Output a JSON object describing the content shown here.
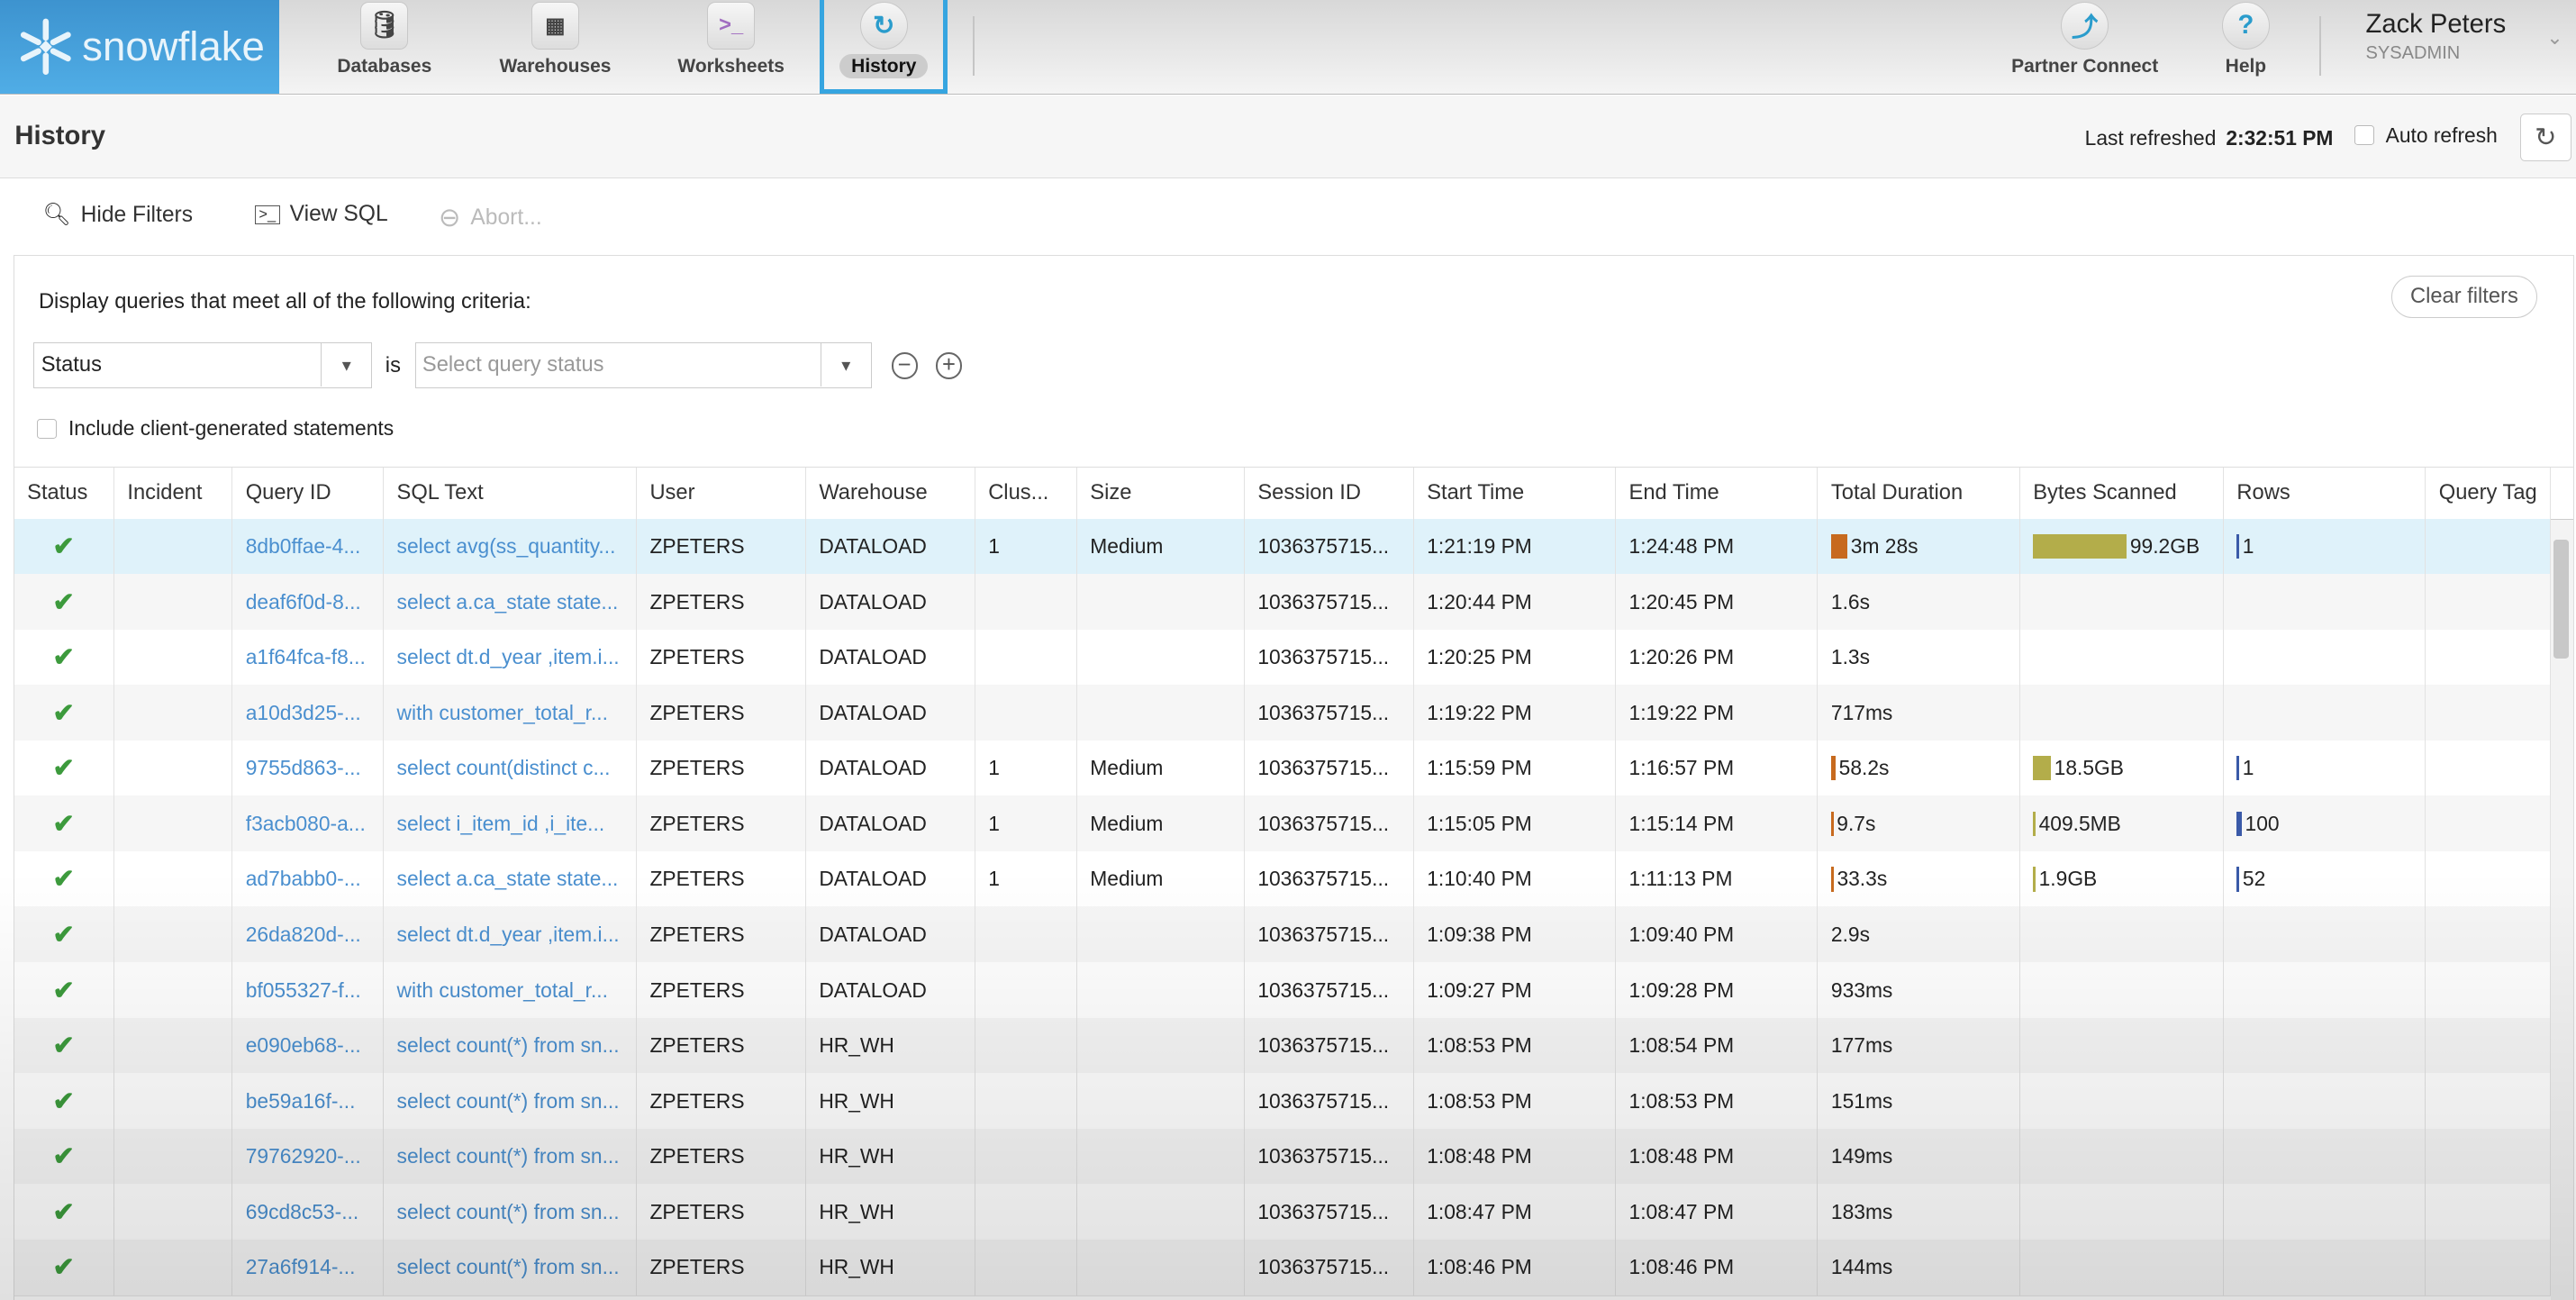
{
  "brand": "snowflake",
  "nav": [
    {
      "label": "Databases",
      "icon": "database-icon"
    },
    {
      "label": "Warehouses",
      "icon": "warehouse-icon"
    },
    {
      "label": "Worksheets",
      "icon": "terminal-icon"
    },
    {
      "label": "History",
      "icon": "history-icon",
      "active": true
    }
  ],
  "right_nav": [
    {
      "label": "Partner Connect",
      "icon": "partner-connect-icon"
    },
    {
      "label": "Help",
      "icon": "help-icon"
    }
  ],
  "user": {
    "name": "Zack Peters",
    "role": "SYSADMIN"
  },
  "page": {
    "title": "History",
    "last_refreshed_label": "Last refreshed",
    "last_refreshed": "2:32:51 PM",
    "auto_refresh": "Auto refresh"
  },
  "toolbar": {
    "hide_filters": "Hide Filters",
    "view_sql": "View SQL",
    "abort": "Abort..."
  },
  "filters": {
    "hint": "Display queries that meet all of the following criteria:",
    "clear": "Clear filters",
    "field": "Status",
    "op": "is",
    "value_placeholder": "Select query status",
    "include_client": "Include client-generated statements"
  },
  "columns": [
    "Status",
    "Incident",
    "Query ID",
    "SQL Text",
    "User",
    "Warehouse",
    "Clus...",
    "Size",
    "Session ID",
    "Start Time",
    "End Time",
    "Total Duration",
    "Bytes Scanned",
    "Rows",
    "Query Tag"
  ],
  "colors": {
    "brand": "#3d93cf",
    "link": "#4a8fcf",
    "success": "#3c9a3c",
    "selected_row": "#dff2fa",
    "duration_bar": "#c76a1e",
    "bytes_bar": "#b3ad4a",
    "rows_bar": "#3a5aa8"
  },
  "rows": [
    {
      "id": "8db0ffae-4...",
      "sql": "select avg(ss_quantity...",
      "user": "ZPETERS",
      "wh": "DATALOAD",
      "clus": "1",
      "size": "Medium",
      "session": "1036375715...",
      "start": "1:21:19 PM",
      "end": "1:24:48 PM",
      "dur": "3m 28s",
      "bytes": "99.2GB",
      "rows": "1",
      "dur_frac": 1,
      "bytes_frac": 1,
      "rows_frac": 0,
      "selected": true
    },
    {
      "id": "deaf6f0d-8...",
      "sql": "select a.ca_state state...",
      "user": "ZPETERS",
      "wh": "DATALOAD",
      "clus": "",
      "size": "",
      "session": "1036375715...",
      "start": "1:20:44 PM",
      "end": "1:20:45 PM",
      "dur": "1.6s",
      "bytes": "",
      "rows": ""
    },
    {
      "id": "a1f64fca-f8...",
      "sql": "select dt.d_year ,item.i...",
      "user": "ZPETERS",
      "wh": "DATALOAD",
      "clus": "",
      "size": "",
      "session": "1036375715...",
      "start": "1:20:25 PM",
      "end": "1:20:26 PM",
      "dur": "1.3s",
      "bytes": "",
      "rows": ""
    },
    {
      "id": "a10d3d25-...",
      "sql": "with customer_total_r...",
      "user": "ZPETERS",
      "wh": "DATALOAD",
      "clus": "",
      "size": "",
      "session": "1036375715...",
      "start": "1:19:22 PM",
      "end": "1:19:22 PM",
      "dur": "717ms",
      "bytes": "",
      "rows": ""
    },
    {
      "id": "9755d863-...",
      "sql": "select count(distinct c...",
      "user": "ZPETERS",
      "wh": "DATALOAD",
      "clus": "1",
      "size": "Medium",
      "session": "1036375715...",
      "start": "1:15:59 PM",
      "end": "1:16:57 PM",
      "dur": "58.2s",
      "bytes": "18.5GB",
      "rows": "1",
      "dur_frac": 0.28,
      "bytes_frac": 0.19,
      "rows_frac": 0
    },
    {
      "id": "f3acb080-a...",
      "sql": "select i_item_id ,i_ite...",
      "user": "ZPETERS",
      "wh": "DATALOAD",
      "clus": "1",
      "size": "Medium",
      "session": "1036375715...",
      "start": "1:15:05 PM",
      "end": "1:15:14 PM",
      "dur": "9.7s",
      "bytes": "409.5MB",
      "rows": "100",
      "dur_frac": 0,
      "bytes_frac": 0,
      "rows_frac": 1
    },
    {
      "id": "ad7babb0-...",
      "sql": "select a.ca_state state...",
      "user": "ZPETERS",
      "wh": "DATALOAD",
      "clus": "1",
      "size": "Medium",
      "session": "1036375715...",
      "start": "1:10:40 PM",
      "end": "1:11:13 PM",
      "dur": "33.3s",
      "bytes": "1.9GB",
      "rows": "52",
      "dur_frac": 0.16,
      "bytes_frac": 0.02,
      "rows_frac": 0.52
    },
    {
      "id": "26da820d-...",
      "sql": "select dt.d_year ,item.i...",
      "user": "ZPETERS",
      "wh": "DATALOAD",
      "clus": "",
      "size": "",
      "session": "1036375715...",
      "start": "1:09:38 PM",
      "end": "1:09:40 PM",
      "dur": "2.9s",
      "bytes": "",
      "rows": ""
    },
    {
      "id": "bf055327-f...",
      "sql": "with customer_total_r...",
      "user": "ZPETERS",
      "wh": "DATALOAD",
      "clus": "",
      "size": "",
      "session": "1036375715...",
      "start": "1:09:27 PM",
      "end": "1:09:28 PM",
      "dur": "933ms",
      "bytes": "",
      "rows": ""
    },
    {
      "id": "e090eb68-...",
      "sql": "select count(*) from sn...",
      "user": "ZPETERS",
      "wh": "HR_WH",
      "clus": "",
      "size": "",
      "session": "1036375715...",
      "start": "1:08:53 PM",
      "end": "1:08:54 PM",
      "dur": "177ms",
      "bytes": "",
      "rows": ""
    },
    {
      "id": "be59a16f-...",
      "sql": "select count(*) from sn...",
      "user": "ZPETERS",
      "wh": "HR_WH",
      "clus": "",
      "size": "",
      "session": "1036375715...",
      "start": "1:08:53 PM",
      "end": "1:08:53 PM",
      "dur": "151ms",
      "bytes": "",
      "rows": ""
    },
    {
      "id": "79762920-...",
      "sql": "select count(*) from sn...",
      "user": "ZPETERS",
      "wh": "HR_WH",
      "clus": "",
      "size": "",
      "session": "1036375715...",
      "start": "1:08:48 PM",
      "end": "1:08:48 PM",
      "dur": "149ms",
      "bytes": "",
      "rows": ""
    },
    {
      "id": "69cd8c53-...",
      "sql": "select count(*) from sn...",
      "user": "ZPETERS",
      "wh": "HR_WH",
      "clus": "",
      "size": "",
      "session": "1036375715...",
      "start": "1:08:47 PM",
      "end": "1:08:47 PM",
      "dur": "183ms",
      "bytes": "",
      "rows": ""
    },
    {
      "id": "27a6f914-...",
      "sql": "select count(*) from sn...",
      "user": "ZPETERS",
      "wh": "HR_WH",
      "clus": "",
      "size": "",
      "session": "1036375715...",
      "start": "1:08:46 PM",
      "end": "1:08:46 PM",
      "dur": "144ms",
      "bytes": "",
      "rows": ""
    }
  ]
}
